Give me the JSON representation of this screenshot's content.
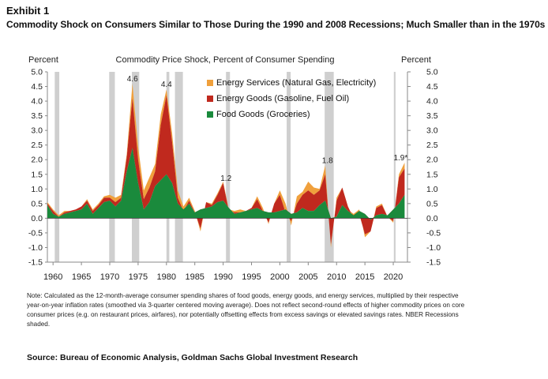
{
  "exhibit_label": "Exhibit 1",
  "subtitle": "Commodity Shock on Consumers Similar to Those During the 1990 and 2008 Recessions; Much Smaller than in the 1970s",
  "note": "Note: Calculated as the 12-month-average consumer spending shares of food goods, energy goods, and energy services, multiplied by their respective year-on-year inflation rates (smoothed via 3-quarter centered moving average). Does not reflect second-round effects of higher commodity prices on core consumer prices (e.g. on restaurant prices, airfares), nor potentially offsetting effects from excess savings or elevated savings rates. NBER Recessions shaded.",
  "source": "Source: Bureau of Economic Analysis, Goldman Sachs Global Investment Research",
  "chart_data": {
    "type": "area",
    "title": "Commodity Price Shock, Percent of Consumer Spending",
    "ylabel_left": "Percent",
    "ylabel_right": "Percent",
    "ylim": [
      -1.5,
      5.0
    ],
    "yticks": [
      "5.0",
      "4.5",
      "4.0",
      "3.5",
      "3.0",
      "2.5",
      "2.0",
      "1.5",
      "1.0",
      "0.5",
      "0.0",
      "-0.5",
      "-1.0",
      "-1.5"
    ],
    "ytick_values": [
      5.0,
      4.5,
      4.0,
      3.5,
      3.0,
      2.5,
      2.0,
      1.5,
      1.0,
      0.5,
      0.0,
      -0.5,
      -1.0,
      -1.5
    ],
    "xlim": [
      1959,
      2022.5
    ],
    "xticks": [
      "1960",
      "1965",
      "1970",
      "1975",
      "1980",
      "1985",
      "1990",
      "1995",
      "2000",
      "2005",
      "2010",
      "2015",
      "2020"
    ],
    "xtick_values": [
      1960,
      1965,
      1970,
      1975,
      1980,
      1985,
      1990,
      1995,
      2000,
      2005,
      2010,
      2015,
      2020
    ],
    "recessions": [
      [
        1960.3,
        1961.1
      ],
      [
        1969.9,
        1970.9
      ],
      [
        1973.9,
        1975.2
      ],
      [
        1980.0,
        1980.5
      ],
      [
        1981.5,
        1982.9
      ],
      [
        1990.5,
        1991.2
      ],
      [
        2001.2,
        2001.9
      ],
      [
        2007.9,
        2009.5
      ],
      [
        2020.1,
        2020.4
      ]
    ],
    "legend_position": "top-center",
    "colors": {
      "energy_services": "#f0a03c",
      "energy_goods": "#c0291e",
      "food_goods": "#1a8a3c",
      "recession": "#cfcfcf"
    },
    "series": [
      {
        "name": "Energy Services (Natural Gas, Electricity)",
        "key": "energy_services"
      },
      {
        "name": "Energy Goods (Gasoline, Fuel Oil)",
        "key": "energy_goods"
      },
      {
        "name": "Food Goods (Groceries)",
        "key": "food_goods"
      }
    ],
    "x": [
      1959,
      1960,
      1961,
      1962,
      1963,
      1964,
      1965,
      1966,
      1967,
      1968,
      1969,
      1970,
      1971,
      1972,
      1973,
      1974,
      1975,
      1976,
      1977,
      1978,
      1979,
      1980,
      1981,
      1982,
      1983,
      1984,
      1985,
      1986,
      1987,
      1988,
      1989,
      1990,
      1991,
      1992,
      1993,
      1994,
      1995,
      1996,
      1997,
      1998,
      1999,
      2000,
      2001,
      2002,
      2003,
      2004,
      2005,
      2006,
      2007,
      2008,
      2009,
      2010,
      2011,
      2012,
      2013,
      2014,
      2015,
      2016,
      2017,
      2018,
      2019,
      2020,
      2021,
      2022
    ],
    "food": [
      0.45,
      0.15,
      0.05,
      0.15,
      0.2,
      0.25,
      0.3,
      0.5,
      0.15,
      0.35,
      0.55,
      0.6,
      0.4,
      0.6,
      1.6,
      2.4,
      1.2,
      0.3,
      0.55,
      1.1,
      1.3,
      1.5,
      1.2,
      0.5,
      0.3,
      0.5,
      0.2,
      0.3,
      0.35,
      0.4,
      0.55,
      0.6,
      0.35,
      0.15,
      0.2,
      0.25,
      0.3,
      0.35,
      0.25,
      0.2,
      0.2,
      0.25,
      0.3,
      0.15,
      0.2,
      0.35,
      0.25,
      0.25,
      0.45,
      0.6,
      0.0,
      0.05,
      0.45,
      0.25,
      0.1,
      0.25,
      0.15,
      -0.05,
      0.1,
      0.15,
      0.1,
      0.3,
      0.5,
      0.8
    ],
    "energy_goods": [
      0.05,
      0.1,
      0.0,
      0.05,
      0.05,
      0.05,
      0.1,
      0.1,
      0.1,
      0.1,
      0.15,
      0.1,
      0.15,
      0.1,
      0.5,
      1.7,
      0.8,
      0.35,
      0.5,
      0.5,
      1.9,
      2.7,
      1.4,
      0.2,
      -0.05,
      0.1,
      0.0,
      -0.65,
      0.2,
      0.05,
      0.25,
      0.6,
      -0.1,
      0.05,
      0.0,
      0.0,
      0.05,
      0.3,
      0.0,
      -0.35,
      0.3,
      0.55,
      -0.1,
      -0.25,
      0.3,
      0.45,
      0.7,
      0.55,
      0.5,
      0.9,
      -0.9,
      0.55,
      0.6,
      0.15,
      -0.1,
      -0.1,
      -0.7,
      -0.4,
      0.25,
      0.3,
      -0.05,
      -0.4,
      0.9,
      0.9
    ],
    "energy_services": [
      0.05,
      0.05,
      0.05,
      0.05,
      0.0,
      0.0,
      0.0,
      0.05,
      0.05,
      0.05,
      0.05,
      0.1,
      0.15,
      0.1,
      0.1,
      0.5,
      0.45,
      0.3,
      0.35,
      0.25,
      0.35,
      0.2,
      0.3,
      0.25,
      0.15,
      0.1,
      0.05,
      -0.1,
      0.0,
      0.05,
      0.05,
      0.05,
      0.05,
      0.05,
      0.1,
      0.0,
      0.0,
      0.1,
      0.1,
      -0.05,
      0.0,
      0.15,
      0.3,
      -0.15,
      0.25,
      0.1,
      0.3,
      0.25,
      0.05,
      0.3,
      -0.1,
      0.1,
      0.0,
      -0.1,
      0.15,
      0.15,
      -0.1,
      0.0,
      0.05,
      0.05,
      0.0,
      -0.05,
      0.1,
      0.2
    ],
    "annotations": [
      {
        "text": "4.6",
        "x": 1974.0,
        "y": 4.6
      },
      {
        "text": "4.4",
        "x": 1980.0,
        "y": 4.4
      },
      {
        "text": "1.2",
        "x": 1990.5,
        "y": 1.2
      },
      {
        "text": "1.8",
        "x": 2008.4,
        "y": 1.8
      },
      {
        "text": "1.9*",
        "x": 2021.3,
        "y": 1.9
      }
    ]
  }
}
